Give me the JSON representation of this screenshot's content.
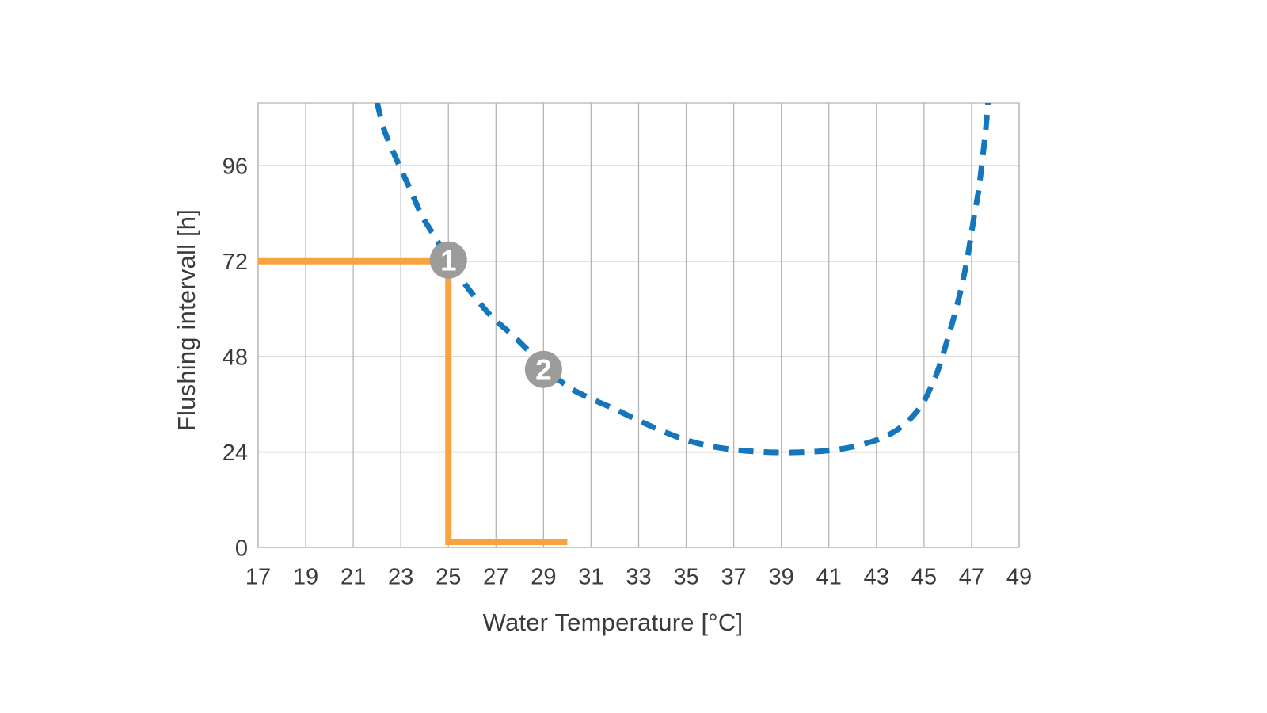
{
  "chart_data": {
    "type": "line",
    "title": "",
    "xlabel": "Water Temperature [°C]",
    "ylabel": "Flushing intervall [h]",
    "xlim": [
      17,
      49
    ],
    "ylim": [
      0,
      111.8
    ],
    "x_ticks": [
      17,
      19,
      21,
      23,
      25,
      27,
      29,
      31,
      33,
      35,
      37,
      39,
      41,
      43,
      45,
      47,
      49
    ],
    "y_ticks": [
      0,
      24,
      48,
      72,
      96
    ],
    "grid": true,
    "legend": "none",
    "series": [
      {
        "name": "flushing-interval-curve",
        "style": "dashed",
        "color": "#1476bd",
        "points": [
          [
            22.0,
            112
          ],
          [
            22.3,
            105
          ],
          [
            22.9,
            96.5
          ],
          [
            23.4,
            90
          ],
          [
            23.9,
            83.3
          ],
          [
            24.5,
            77.5
          ],
          [
            25.0,
            72.3
          ],
          [
            25.9,
            64.6
          ],
          [
            26.8,
            58.2
          ],
          [
            27.7,
            53.4
          ],
          [
            28.4,
            49.3
          ],
          [
            29.0,
            45.8
          ],
          [
            29.6,
            42.4
          ],
          [
            30.2,
            39.8
          ],
          [
            31.0,
            37.4
          ],
          [
            32.0,
            34.8
          ],
          [
            33.0,
            31.9
          ],
          [
            34.0,
            29.3
          ],
          [
            35.0,
            27.0
          ],
          [
            36.0,
            25.5
          ],
          [
            37.0,
            24.6
          ],
          [
            38.0,
            24.1
          ],
          [
            39.0,
            23.9
          ],
          [
            40.0,
            24.0
          ],
          [
            41.0,
            24.4
          ],
          [
            42.0,
            25.3
          ],
          [
            43.0,
            27.0
          ],
          [
            43.6,
            28.6
          ],
          [
            44.1,
            30.6
          ],
          [
            44.6,
            33.5
          ],
          [
            45.0,
            36.8
          ],
          [
            45.3,
            40.5
          ],
          [
            45.6,
            44.8
          ],
          [
            46.0,
            52.6
          ],
          [
            46.35,
            60.0
          ],
          [
            46.65,
            67.5
          ],
          [
            46.9,
            75.5
          ],
          [
            47.1,
            83.0
          ],
          [
            47.3,
            90.0
          ],
          [
            47.45,
            97.5
          ],
          [
            47.6,
            105.5
          ],
          [
            47.7,
            113
          ]
        ]
      },
      {
        "name": "example-guide-line",
        "style": "solid",
        "color": "#f7a440",
        "points": [
          [
            17,
            72
          ],
          [
            25,
            72
          ],
          [
            25,
            1.4
          ],
          [
            30,
            1.4
          ]
        ]
      }
    ],
    "markers": [
      {
        "label": "1",
        "x": 25,
        "y": 72.3,
        "color": "#9c9c9b",
        "text_color": "#ffffff"
      },
      {
        "label": "2",
        "x": 29,
        "y": 44.8,
        "color": "#9c9c9b",
        "text_color": "#ffffff"
      }
    ],
    "colors": {
      "grid": "#b5b5b5",
      "curve": "#1476bd",
      "guide": "#f7a440",
      "marker": "#9c9c9b",
      "text": "#3b3b3a",
      "background": "#ffffff"
    }
  }
}
